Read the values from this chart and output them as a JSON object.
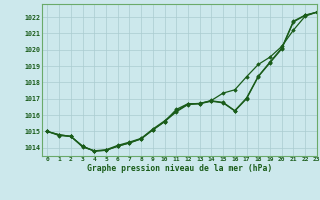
{
  "title": "Graphe pression niveau de la mer (hPa)",
  "bg_color": "#cce8ec",
  "grid_color": "#aaccd0",
  "line_color": "#1a5c1a",
  "marker_color": "#1a5c1a",
  "xlim": [
    -0.5,
    23
  ],
  "ylim": [
    1013.5,
    1022.8
  ],
  "yticks": [
    1014,
    1015,
    1016,
    1017,
    1018,
    1019,
    1020,
    1021,
    1022
  ],
  "xticks": [
    0,
    1,
    2,
    3,
    4,
    5,
    6,
    7,
    8,
    9,
    10,
    11,
    12,
    13,
    14,
    15,
    16,
    17,
    18,
    19,
    20,
    21,
    22,
    23
  ],
  "series1": [
    1015.0,
    1014.8,
    1014.7,
    1014.1,
    1013.8,
    1013.85,
    1014.1,
    1014.3,
    1014.55,
    1015.1,
    1015.6,
    1016.2,
    1016.65,
    1016.7,
    1016.85,
    1016.75,
    1016.25,
    1017.0,
    1018.35,
    1019.2,
    1020.05,
    1021.7,
    1022.1,
    1022.3
  ],
  "series2": [
    1015.0,
    1014.8,
    1014.7,
    1014.1,
    1013.8,
    1013.85,
    1014.1,
    1014.3,
    1014.55,
    1015.1,
    1015.6,
    1016.35,
    1016.7,
    1016.7,
    1016.9,
    1017.35,
    1017.55,
    1018.35,
    1019.1,
    1019.55,
    1020.2,
    1021.2,
    1022.05,
    1022.3
  ],
  "series3": [
    1015.0,
    1014.75,
    1014.7,
    1014.05,
    1013.82,
    1013.88,
    1014.15,
    1014.35,
    1014.58,
    1015.15,
    1015.65,
    1016.25,
    1016.68,
    1016.72,
    1016.88,
    1016.78,
    1016.28,
    1017.05,
    1018.38,
    1019.25,
    1020.1,
    1021.75,
    1022.12,
    1022.3
  ]
}
